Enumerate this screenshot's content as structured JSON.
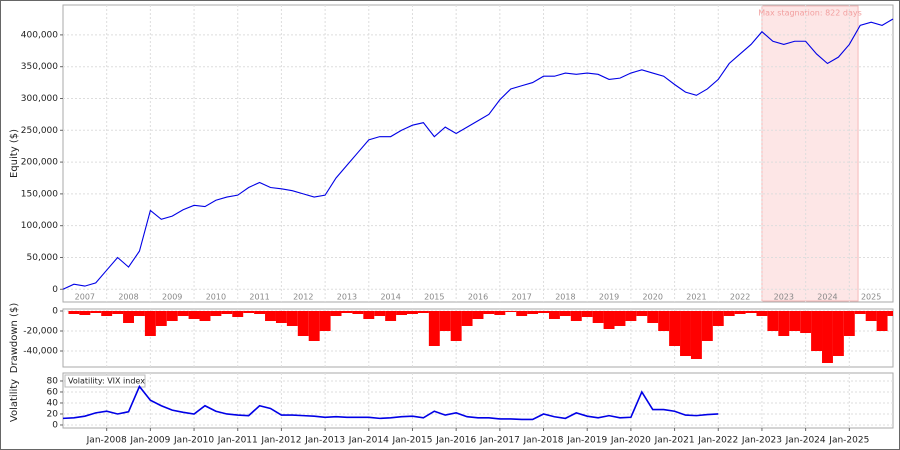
{
  "chart_data": [
    {
      "type": "line",
      "ylabel": "Equity ($)",
      "color": "#0000e6",
      "x": [
        2007,
        2007.25,
        2007.5,
        2007.75,
        2008,
        2008.25,
        2008.5,
        2008.75,
        2009,
        2009.25,
        2009.5,
        2009.75,
        2010,
        2010.25,
        2010.5,
        2010.75,
        2011,
        2011.25,
        2011.5,
        2011.75,
        2012,
        2012.25,
        2012.5,
        2012.75,
        2013,
        2013.25,
        2013.5,
        2013.75,
        2014,
        2014.25,
        2014.5,
        2014.75,
        2015,
        2015.25,
        2015.5,
        2015.75,
        2016,
        2016.25,
        2016.5,
        2016.75,
        2017,
        2017.25,
        2017.5,
        2017.75,
        2018,
        2018.25,
        2018.5,
        2018.75,
        2019,
        2019.25,
        2019.5,
        2019.75,
        2020,
        2020.25,
        2020.5,
        2020.75,
        2021,
        2021.25,
        2021.5,
        2021.75,
        2022,
        2022.25,
        2022.5,
        2022.75,
        2023,
        2023.25,
        2023.5,
        2023.75,
        2024,
        2024.25,
        2024.5,
        2024.75,
        2025,
        2025.25,
        2025.5,
        2025.75,
        2026
      ],
      "values": [
        0,
        8000,
        5000,
        10000,
        30000,
        50000,
        35000,
        60000,
        124000,
        110000,
        115000,
        125000,
        132000,
        130000,
        140000,
        145000,
        148000,
        160000,
        168000,
        160000,
        158000,
        155000,
        150000,
        145000,
        148000,
        175000,
        195000,
        215000,
        235000,
        240000,
        240000,
        250000,
        258000,
        262000,
        240000,
        255000,
        245000,
        255000,
        265000,
        275000,
        298000,
        315000,
        320000,
        325000,
        335000,
        335000,
        340000,
        338000,
        340000,
        338000,
        330000,
        332000,
        340000,
        345000,
        340000,
        335000,
        322000,
        310000,
        305000,
        315000,
        330000,
        355000,
        370000,
        385000,
        405000,
        390000,
        385000,
        390000,
        390000,
        370000,
        355000,
        365000,
        385000,
        415000,
        420000,
        415000,
        425000
      ],
      "xlim": [
        2007,
        2026
      ],
      "ylim": [
        -20000,
        447000
      ],
      "yticks": [
        0,
        {
          "value": 50000,
          "label": "50,000"
        },
        {
          "value": 100000,
          "label": "100,000"
        },
        {
          "value": 150000,
          "label": "150,000"
        },
        {
          "value": 200000,
          "label": "200,000"
        },
        {
          "value": 250000,
          "label": "250,000"
        },
        {
          "value": 300000,
          "label": "300,000"
        },
        {
          "value": 350000,
          "label": "350,000"
        },
        {
          "value": 400000,
          "label": "400,000"
        }
      ],
      "xticks": [
        {
          "value": 2007.5,
          "label": "2007"
        },
        {
          "value": 2008.5,
          "label": "2008"
        },
        {
          "value": 2009.5,
          "label": "2009"
        },
        {
          "value": 2010.5,
          "label": "2010"
        },
        {
          "value": 2011.5,
          "label": "2011"
        },
        {
          "value": 2012.5,
          "label": "2012"
        },
        {
          "value": 2013.5,
          "label": "2013"
        },
        {
          "value": 2014.5,
          "label": "2014"
        },
        {
          "value": 2015.5,
          "label": "2015"
        },
        {
          "value": 2016.5,
          "label": "2016"
        },
        {
          "value": 2017.5,
          "label": "2017"
        },
        {
          "value": 2018.5,
          "label": "2018"
        },
        {
          "value": 2019.5,
          "label": "2019"
        },
        {
          "value": 2020.5,
          "label": "2020"
        },
        {
          "value": 2021.5,
          "label": "2021"
        },
        {
          "value": 2022.5,
          "label": "2022"
        },
        {
          "value": 2023.5,
          "label": "2023"
        },
        {
          "value": 2024.5,
          "label": "2024"
        },
        {
          "value": 2025.5,
          "label": "2025"
        }
      ],
      "xgrid": [
        2008,
        2009,
        2010,
        2011,
        2012,
        2013,
        2014,
        2015,
        2016,
        2017,
        2018,
        2019,
        2020,
        2021,
        2022,
        2023,
        2024,
        2025
      ],
      "grid": true,
      "stagnation": {
        "label": "Max stagnation: 822 days",
        "start": 2023.0,
        "end": 2025.2
      }
    },
    {
      "type": "bar",
      "ylabel": "Drawdown ($)",
      "color": "#ff0000",
      "x": [
        2007,
        2007.25,
        2007.5,
        2007.75,
        2008,
        2008.25,
        2008.5,
        2008.75,
        2009,
        2009.25,
        2009.5,
        2009.75,
        2010,
        2010.25,
        2010.5,
        2010.75,
        2011,
        2011.25,
        2011.5,
        2011.75,
        2012,
        2012.25,
        2012.5,
        2012.75,
        2013,
        2013.25,
        2013.5,
        2013.75,
        2014,
        2014.25,
        2014.5,
        2014.75,
        2015,
        2015.25,
        2015.5,
        2015.75,
        2016,
        2016.25,
        2016.5,
        2016.75,
        2017,
        2017.25,
        2017.5,
        2017.75,
        2018,
        2018.25,
        2018.5,
        2018.75,
        2019,
        2019.25,
        2019.5,
        2019.75,
        2020,
        2020.25,
        2020.5,
        2020.75,
        2021,
        2021.25,
        2021.5,
        2021.75,
        2022,
        2022.25,
        2022.5,
        2022.75,
        2023,
        2023.25,
        2023.5,
        2023.75,
        2024,
        2024.25,
        2024.5,
        2024.75,
        2025,
        2025.25,
        2025.5,
        2025.75,
        2026
      ],
      "values": [
        0,
        -3000,
        -4000,
        -2000,
        -5000,
        -3000,
        -12000,
        -5000,
        -25000,
        -15000,
        -10000,
        -5000,
        -8000,
        -10000,
        -5000,
        -3000,
        -6000,
        -2000,
        -3000,
        -10000,
        -12000,
        -15000,
        -25000,
        -30000,
        -20000,
        -5000,
        -2000,
        -3000,
        -8000,
        -5000,
        -10000,
        -4000,
        -3000,
        -2000,
        -35000,
        -20000,
        -30000,
        -15000,
        -8000,
        -3000,
        -4000,
        -1000,
        -5000,
        -3000,
        -2000,
        -8000,
        -5000,
        -10000,
        -6000,
        -12000,
        -18000,
        -15000,
        -10000,
        -5000,
        -12000,
        -20000,
        -35000,
        -45000,
        -48000,
        -30000,
        -15000,
        -5000,
        -3000,
        -2000,
        -5000,
        -20000,
        -25000,
        -20000,
        -22000,
        -40000,
        -52000,
        -45000,
        -25000,
        -3000,
        -10000,
        -20000,
        -5000
      ],
      "xlim": [
        2007,
        2026
      ],
      "ylim": [
        -56000,
        2000
      ],
      "yticks": [
        0,
        {
          "value": -20000,
          "label": "-20,000"
        },
        {
          "value": -40000,
          "label": "-40,000"
        }
      ],
      "xgrid": [
        2008,
        2009,
        2010,
        2011,
        2012,
        2013,
        2014,
        2015,
        2016,
        2017,
        2018,
        2019,
        2020,
        2021,
        2022,
        2023,
        2024,
        2025
      ],
      "grid": true
    },
    {
      "type": "line",
      "ylabel": "Volatility",
      "annotation": "Volatility: VIX index",
      "color": "#0000e6",
      "x": [
        2007,
        2007.25,
        2007.5,
        2007.75,
        2008,
        2008.25,
        2008.5,
        2008.75,
        2009,
        2009.25,
        2009.5,
        2009.75,
        2010,
        2010.25,
        2010.5,
        2010.75,
        2011,
        2011.25,
        2011.5,
        2011.75,
        2012,
        2012.25,
        2012.5,
        2012.75,
        2013,
        2013.25,
        2013.5,
        2013.75,
        2014,
        2014.25,
        2014.5,
        2014.75,
        2015,
        2015.25,
        2015.5,
        2015.75,
        2016,
        2016.25,
        2016.5,
        2016.75,
        2017,
        2017.25,
        2017.5,
        2017.75,
        2018,
        2018.25,
        2018.5,
        2018.75,
        2019,
        2019.25,
        2019.5,
        2019.75,
        2020,
        2020.25,
        2020.5,
        2020.75,
        2021,
        2021.25,
        2021.5,
        2021.75,
        2022
      ],
      "values": [
        12,
        13,
        16,
        22,
        25,
        20,
        24,
        70,
        45,
        35,
        27,
        23,
        20,
        35,
        25,
        20,
        18,
        17,
        35,
        30,
        18,
        18,
        17,
        16,
        14,
        15,
        14,
        14,
        14,
        12,
        13,
        15,
        16,
        13,
        25,
        18,
        22,
        15,
        13,
        13,
        11,
        11,
        10,
        10,
        20,
        15,
        12,
        22,
        16,
        13,
        17,
        13,
        14,
        60,
        28,
        28,
        25,
        18,
        17,
        19,
        20
      ],
      "xlim": [
        2007,
        2026
      ],
      "ylim": [
        -5.5,
        94.5
      ],
      "yticks": [
        0,
        20,
        40,
        60,
        80
      ],
      "xticks": [
        {
          "value": 2008,
          "label": "Jan-2008"
        },
        {
          "value": 2009,
          "label": "Jan-2009"
        },
        {
          "value": 2010,
          "label": "Jan-2010"
        },
        {
          "value": 2011,
          "label": "Jan-2011"
        },
        {
          "value": 2012,
          "label": "Jan-2012"
        },
        {
          "value": 2013,
          "label": "Jan-2013"
        },
        {
          "value": 2014,
          "label": "Jan-2014"
        },
        {
          "value": 2015,
          "label": "Jan-2015"
        },
        {
          "value": 2016,
          "label": "Jan-2016"
        },
        {
          "value": 2017,
          "label": "Jan-2017"
        },
        {
          "value": 2018,
          "label": "Jan-2018"
        },
        {
          "value": 2019,
          "label": "Jan-2019"
        },
        {
          "value": 2020,
          "label": "Jan-2020"
        },
        {
          "value": 2021,
          "label": "Jan-2021"
        },
        {
          "value": 2022,
          "label": "Jan-2022"
        },
        {
          "value": 2023,
          "label": "Jan-2023"
        },
        {
          "value": 2024,
          "label": "Jan-2024"
        },
        {
          "value": 2025,
          "label": "Jan-2025"
        }
      ],
      "xgrid": [
        2008,
        2009,
        2010,
        2011,
        2012,
        2013,
        2014,
        2015,
        2016,
        2017,
        2018,
        2019,
        2020,
        2021,
        2022,
        2023,
        2024,
        2025
      ],
      "grid": true
    }
  ]
}
